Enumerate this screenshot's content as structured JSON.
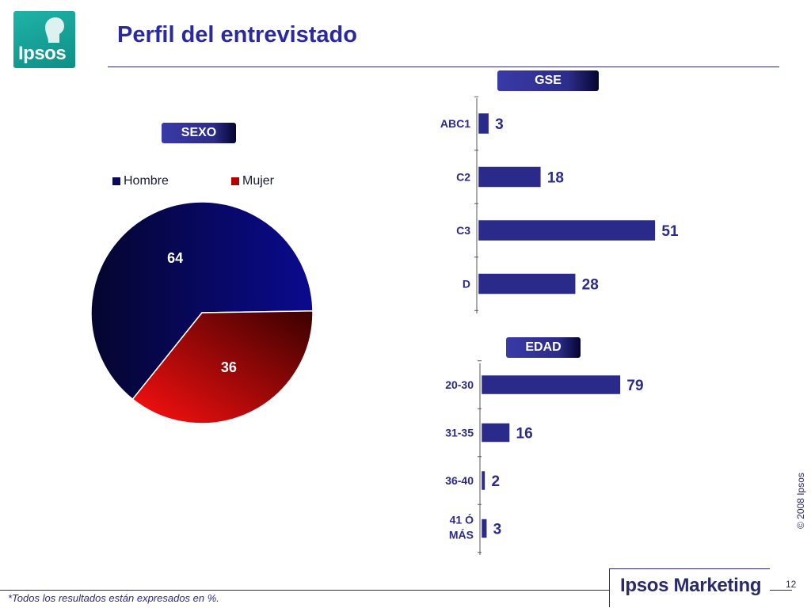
{
  "logo": {
    "text": "Ipsos"
  },
  "header": {
    "title": "Perfil del entrevistado"
  },
  "tags": {
    "gse": "GSE",
    "sexo": "SEXO",
    "edad": "EDAD"
  },
  "colors": {
    "primary": "#2a2aa0",
    "hombre": "#0a0a5a",
    "mujer": "#e00000",
    "bar": "#2a2a8a"
  },
  "chart_data": [
    {
      "type": "pie",
      "title": "SEXO",
      "legend_position": "top",
      "categories": [
        "Hombre",
        "Mujer"
      ],
      "values": [
        64,
        36
      ]
    },
    {
      "type": "bar",
      "orientation": "horizontal",
      "title": "GSE",
      "categories": [
        "ABC1",
        "C2",
        "C3",
        "D"
      ],
      "values": [
        3,
        18,
        51,
        28
      ],
      "xlim": [
        0,
        100
      ]
    },
    {
      "type": "bar",
      "orientation": "horizontal",
      "title": "EDAD",
      "categories": [
        "20-30",
        "31-35",
        "36-40",
        "41 Ó MÁS"
      ],
      "values": [
        79,
        16,
        2,
        3
      ],
      "xlim": [
        0,
        100
      ]
    }
  ],
  "footer": {
    "note": "*Todos los resultados están expresados en %.",
    "brand": "Ipsos Marketing",
    "page": "12",
    "copyright": "© 2008 Ipsos"
  }
}
